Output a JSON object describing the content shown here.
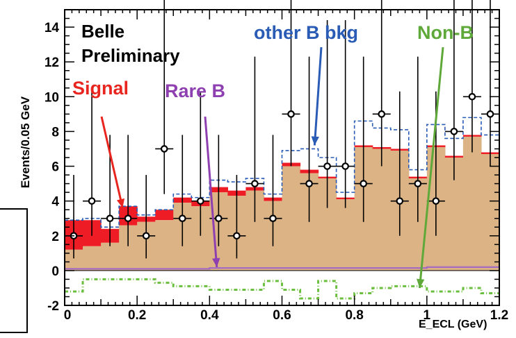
{
  "chart_data": {
    "type": "bar",
    "ylabel": "Events/0.05 GeV",
    "xlabel": "E_ECL (GeV)",
    "xlim": [
      0,
      1.2
    ],
    "ylim": [
      -2,
      15
    ],
    "x_ticks": [
      "0",
      "0.2",
      "0.4",
      "0.6",
      "0.8",
      "1",
      "1.2"
    ],
    "y_ticks": [
      "-2",
      "0",
      "2",
      "4",
      "6",
      "8",
      "10",
      "12",
      "14"
    ],
    "experiment": "Belle",
    "status": "Preliminary",
    "bin_width": 0.05,
    "bin_lows": [
      0,
      0.05,
      0.1,
      0.15,
      0.2,
      0.25,
      0.3,
      0.35,
      0.4,
      0.45,
      0.5,
      0.55,
      0.6,
      0.65,
      0.7,
      0.75,
      0.8,
      0.85,
      0.9,
      0.95,
      1.0,
      1.05,
      1.1,
      1.15
    ],
    "stack_top": [
      2.9,
      2.9,
      2.4,
      3.7,
      3.1,
      3.5,
      4.2,
      4.0,
      4.8,
      4.6,
      4.8,
      4.2,
      6.2,
      5.8,
      5.4,
      4.2,
      7.2,
      7.1,
      7.0,
      5.4,
      7.2,
      6.6,
      7.8,
      6.8
    ],
    "nonsignal_top": [
      1.2,
      1.4,
      1.6,
      2.6,
      2.8,
      2.9,
      3.9,
      3.7,
      4.5,
      4.3,
      4.6,
      4.0,
      6.0,
      5.6,
      5.3,
      4.1,
      7.1,
      7.0,
      6.9,
      5.3,
      7.1,
      6.5,
      7.7,
      6.7
    ],
    "total_top": [
      2.9,
      3.0,
      2.5,
      3.7,
      3.2,
      3.5,
      4.4,
      4.2,
      5.2,
      5.1,
      5.3,
      4.4,
      6.9,
      7.0,
      6.5,
      4.5,
      8.6,
      8.2,
      8.1,
      5.8,
      8.4,
      7.6,
      8.8,
      7.8
    ],
    "rare_b": [
      0.1,
      0.1,
      0.1,
      0.1,
      0.1,
      0.1,
      0.1,
      0.1,
      0.15,
      0.15,
      0.15,
      0.15,
      0.15,
      0.15,
      0.15,
      0.15,
      0.15,
      0.15,
      0.15,
      0.15,
      0.2,
      0.2,
      0.2,
      0.2
    ],
    "non_b": [
      -1.2,
      -0.5,
      -0.5,
      -0.5,
      -0.5,
      -0.7,
      -0.9,
      -0.9,
      -1.1,
      -1.1,
      -1.1,
      -0.6,
      -1.1,
      -1.6,
      -0.6,
      -1.6,
      -1.3,
      -1.0,
      -0.9,
      -0.9,
      -1.2,
      -1.2,
      -1.0,
      -1.3
    ],
    "points": [
      {
        "x": 0.025,
        "y": 2,
        "lo": 1.3,
        "hi": 3.5
      },
      {
        "x": 0.075,
        "y": 4,
        "lo": 2.0,
        "hi": 6.3
      },
      {
        "x": 0.125,
        "y": 3,
        "lo": 1.6,
        "hi": 4.8
      },
      {
        "x": 0.175,
        "y": 3,
        "lo": 1.6,
        "hi": 4.8
      },
      {
        "x": 0.225,
        "y": 2,
        "lo": 1.3,
        "hi": 3.5
      },
      {
        "x": 0.275,
        "y": 7,
        "lo": 2.6,
        "hi": 9.5
      },
      {
        "x": 0.325,
        "y": 3,
        "lo": 1.6,
        "hi": 4.8
      },
      {
        "x": 0.375,
        "y": 4,
        "lo": 2.0,
        "hi": 6.3
      },
      {
        "x": 0.425,
        "y": 3,
        "lo": 1.6,
        "hi": 4.8
      },
      {
        "x": 0.475,
        "y": 2,
        "lo": 1.3,
        "hi": 3.5
      },
      {
        "x": 0.525,
        "y": 5,
        "lo": 2.2,
        "hi": 7.3
      },
      {
        "x": 0.575,
        "y": 3,
        "lo": 1.6,
        "hi": 4.8
      },
      {
        "x": 0.625,
        "y": 9,
        "lo": 3.0,
        "hi": 11.5
      },
      {
        "x": 0.675,
        "y": 5,
        "lo": 2.2,
        "hi": 7.3
      },
      {
        "x": 0.725,
        "y": 6,
        "lo": 2.4,
        "hi": 8.4
      },
      {
        "x": 0.775,
        "y": 6,
        "lo": 2.4,
        "hi": 8.4
      },
      {
        "x": 0.825,
        "y": 5,
        "lo": 2.2,
        "hi": 7.3
      },
      {
        "x": 0.875,
        "y": 9,
        "lo": 3.0,
        "hi": 11.5
      },
      {
        "x": 0.925,
        "y": 4,
        "lo": 2.0,
        "hi": 6.3
      },
      {
        "x": 0.975,
        "y": 5,
        "lo": 2.2,
        "hi": 7.3
      },
      {
        "x": 1.025,
        "y": 4,
        "lo": 2.0,
        "hi": 6.3
      },
      {
        "x": 1.075,
        "y": 8,
        "lo": 2.8,
        "hi": 10.5
      },
      {
        "x": 1.125,
        "y": 10,
        "lo": 3.2,
        "hi": 12.6
      },
      {
        "x": 1.175,
        "y": 9,
        "lo": 3.0,
        "hi": 11.5
      }
    ],
    "annotations": [
      {
        "text": "Signal",
        "color": "#e8251f",
        "target": [
          0.16,
          3.6
        ]
      },
      {
        "text": "Rare B",
        "color": "#8e3fb0",
        "target": [
          0.42,
          0.2
        ]
      },
      {
        "text": "other B bkg",
        "color": "#2a5bb5",
        "target": [
          0.69,
          7.2
        ]
      },
      {
        "text": "Non-B",
        "color": "#5fa83a",
        "target": [
          0.98,
          -1.0
        ]
      }
    ],
    "colors": {
      "signal": "#ee1c24",
      "nonsignal": "#dcb384",
      "other_b": "#2a5bb5",
      "rare_b": "#a36bc1",
      "non_b": "#6cbf3e",
      "points": "#000000"
    }
  }
}
